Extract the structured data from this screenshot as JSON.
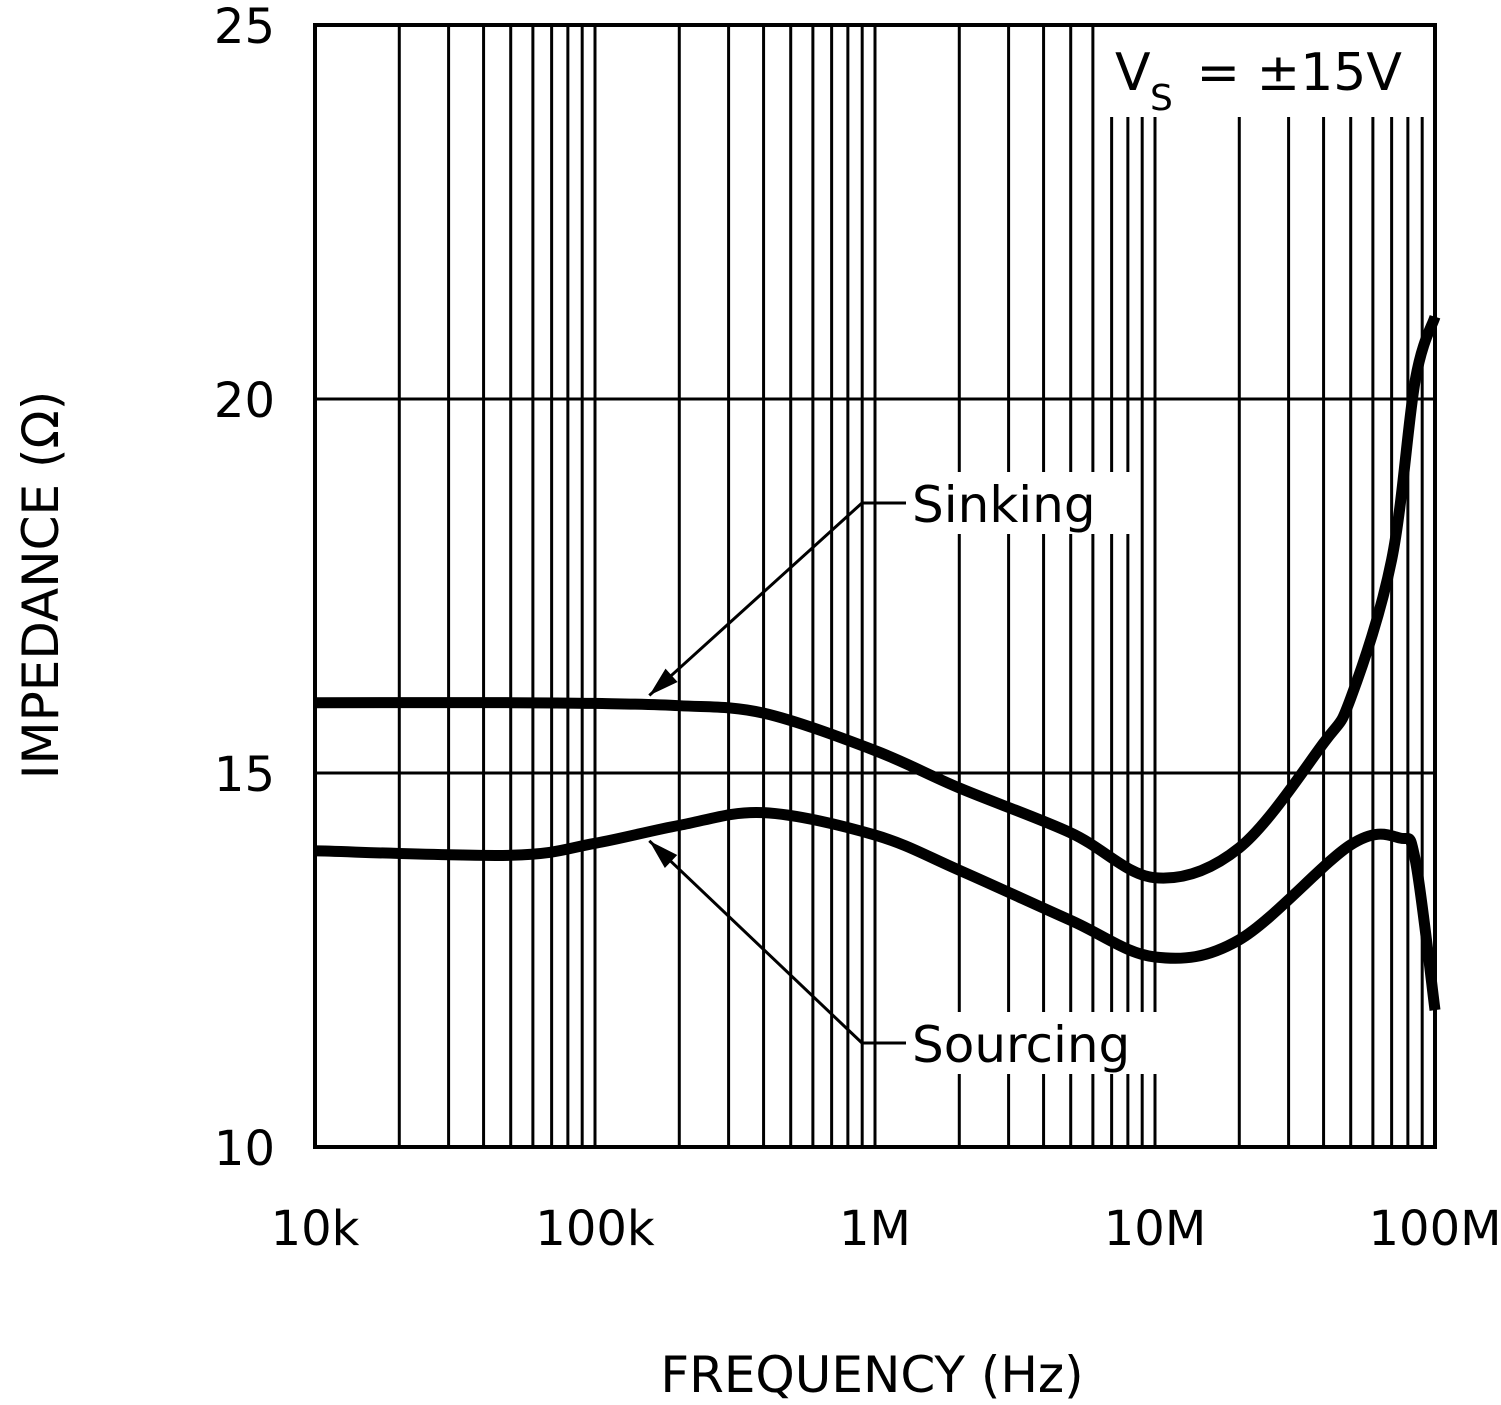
{
  "chart_data": {
    "type": "line",
    "title": "",
    "xlabel": "FREQUENCY (Hz)",
    "ylabel": "IMPEDANCE (Ω)",
    "xscale": "log",
    "xlim": [
      10000,
      100000000
    ],
    "ylim": [
      10,
      25
    ],
    "x_tick_values": [
      10000,
      100000,
      1000000,
      10000000,
      100000000
    ],
    "x_tick_labels": [
      "10k",
      "100k",
      "1M",
      "10M",
      "100M"
    ],
    "y_tick_values": [
      10,
      15,
      20,
      25
    ],
    "y_tick_labels": [
      "10",
      "15",
      "20",
      "25"
    ],
    "grid": true,
    "condition_label": {
      "main": "V",
      "sub": "S",
      "rest": " = ±15V"
    },
    "line_color": "#000000",
    "series": [
      {
        "name": "Sinking",
        "x": [
          10000,
          50000,
          100000,
          200000,
          400000,
          1000000,
          2000000,
          5000000,
          10000000,
          20000000,
          40000000,
          50000000,
          70000000,
          85000000,
          100000000
        ],
        "y": [
          15.94,
          15.94,
          15.93,
          15.9,
          15.8,
          15.3,
          14.8,
          14.2,
          13.6,
          14.0,
          15.4,
          16.0,
          17.85,
          20.25,
          21.1
        ]
      },
      {
        "name": "Sourcing",
        "x": [
          10000,
          50000,
          100000,
          200000,
          400000,
          1000000,
          2000000,
          5000000,
          10000000,
          20000000,
          50000000,
          75000000,
          85000000,
          100000000
        ],
        "y": [
          13.96,
          13.9,
          14.06,
          14.3,
          14.47,
          14.17,
          13.7,
          13.03,
          12.54,
          12.77,
          14.04,
          14.13,
          13.84,
          11.83
        ]
      }
    ],
    "annotations": [
      {
        "text": "Sinking",
        "series": "Sinking",
        "points_to": [
          150000,
          15.93
        ]
      },
      {
        "text": "Sourcing",
        "series": "Sourcing",
        "points_to": [
          150000,
          14.2
        ]
      }
    ]
  }
}
